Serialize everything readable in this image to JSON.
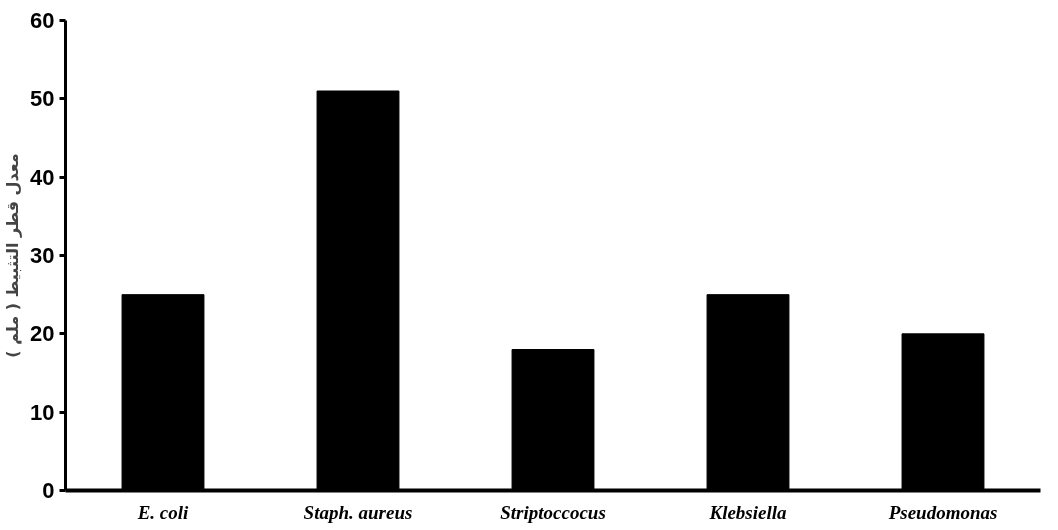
{
  "chart_data": {
    "type": "bar",
    "ylabel": "معدل قطر التثبيط ( ملم )",
    "categories": [
      "E. coli",
      "Staph. aureus",
      "Striptoccocus",
      "Klebsiella",
      "Pseudomonas"
    ],
    "values": [
      25,
      51,
      18,
      25,
      20
    ],
    "color": "#000000",
    "ylim": [
      0,
      60
    ],
    "yticks": [
      0,
      10,
      20,
      30,
      40,
      50,
      60
    ],
    "grid": false
  }
}
